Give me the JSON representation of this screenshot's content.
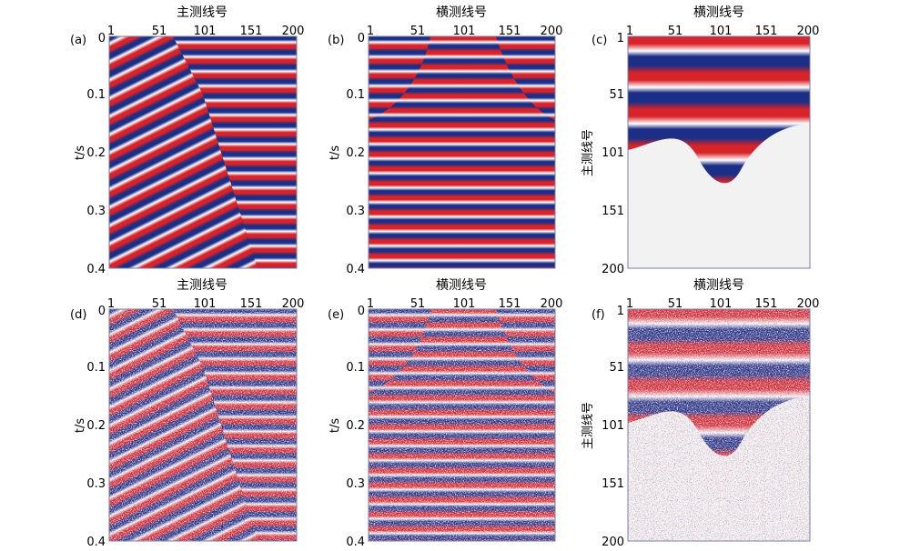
{
  "figure": {
    "panels": [
      {
        "id": "a",
        "label": "(a)",
        "top_title": "主测线号",
        "side_label": "t/s",
        "type": "seismic_section",
        "noise": false,
        "x_ticks": [
          "1",
          "51",
          "101",
          "151",
          "200"
        ],
        "y_ticks": [
          "0",
          "0.1",
          "0.2",
          "0.3",
          "0.4"
        ],
        "xlim": [
          1,
          200
        ],
        "ylim": [
          0,
          0.4
        ]
      },
      {
        "id": "b",
        "label": "(b)",
        "top_title": "横测线号",
        "side_label": "t/s",
        "type": "seismic_section",
        "noise": false,
        "x_ticks": [
          "1",
          "51",
          "101",
          "151",
          "200"
        ],
        "y_ticks": [
          "0",
          "0.1",
          "0.2",
          "0.3",
          "0.4"
        ],
        "xlim": [
          1,
          200
        ],
        "ylim": [
          0,
          0.4
        ]
      },
      {
        "id": "c",
        "label": "(c)",
        "top_title": "横测线号",
        "side_label": "主测线号",
        "type": "time_slice",
        "noise": false,
        "x_ticks": [
          "1",
          "51",
          "101",
          "151",
          "200"
        ],
        "y_ticks": [
          "1",
          "51",
          "101",
          "151",
          "200"
        ],
        "xlim": [
          1,
          200
        ],
        "ylim": [
          1,
          200
        ]
      },
      {
        "id": "d",
        "label": "(d)",
        "top_title": "主测线号",
        "side_label": "t/s",
        "type": "seismic_section",
        "noise": true,
        "x_ticks": [
          "1",
          "51",
          "101",
          "151",
          "200"
        ],
        "y_ticks": [
          "0",
          "0.1",
          "0.2",
          "0.3",
          "0.4"
        ],
        "xlim": [
          1,
          200
        ],
        "ylim": [
          0,
          0.4
        ]
      },
      {
        "id": "e",
        "label": "(e)",
        "top_title": "横测线号",
        "side_label": "t/s",
        "type": "seismic_section",
        "noise": true,
        "x_ticks": [
          "1",
          "51",
          "101",
          "151",
          "200"
        ],
        "y_ticks": [
          "0",
          "0.1",
          "0.2",
          "0.3",
          "0.4"
        ],
        "xlim": [
          1,
          200
        ],
        "ylim": [
          0,
          0.4
        ]
      },
      {
        "id": "f",
        "label": "(f)",
        "top_title": "横测线号",
        "side_label": "主测线号",
        "type": "time_slice",
        "noise": true,
        "x_ticks": [
          "1",
          "51",
          "101",
          "151",
          "200"
        ],
        "y_ticks": [
          "1",
          "51",
          "101",
          "151",
          "200"
        ],
        "xlim": [
          1,
          200
        ],
        "ylim": [
          1,
          200
        ]
      }
    ]
  },
  "chart_data": [
    {
      "type": "heatmap",
      "panel": "a",
      "xlabel": "主测线号",
      "ylabel": "t/s",
      "xlim": [
        1,
        200
      ],
      "ylim": [
        0,
        0.4
      ],
      "colors": {
        "positive": "#d7232a",
        "negative": "#1c2f86",
        "zero": "#ffffff"
      },
      "content": "dipping events cut by near-horizontal events",
      "regions": [
        {
          "name": "dipping",
          "boundary": [
            [
              1,
              0
            ],
            [
              70,
              0
            ],
            [
              101,
              0.1
            ],
            [
              160,
              0.4
            ],
            [
              1,
              0.4
            ]
          ]
        },
        {
          "name": "flat",
          "boundary": [
            [
              70,
              0
            ],
            [
              200,
              0
            ],
            [
              200,
              0.4
            ],
            [
              160,
              0.4
            ],
            [
              101,
              0.1
            ]
          ]
        }
      ]
    },
    {
      "type": "heatmap",
      "panel": "b",
      "xlabel": "横测线号",
      "ylabel": "t/s",
      "xlim": [
        1,
        200
      ],
      "ylim": [
        0,
        0.4
      ],
      "colors": {
        "positive": "#d7232a",
        "negative": "#1c2f86",
        "zero": "#ffffff"
      },
      "content": "horizontal events, shallow region bounded by curved edges"
    },
    {
      "type": "heatmap",
      "panel": "c",
      "xlabel": "横测线号",
      "ylabel": "主测线号",
      "xlim": [
        1,
        200
      ],
      "ylim": [
        1,
        200
      ],
      "colors": {
        "positive": "#d7232a",
        "negative": "#1c2f86",
        "zero": "#ffffff"
      },
      "content": "time slice: horizontal stripes above a bell-shaped boundary, blank below"
    },
    {
      "type": "heatmap",
      "panel": "d",
      "xlabel": "主测线号",
      "ylabel": "t/s",
      "xlim": [
        1,
        200
      ],
      "ylim": [
        0,
        0.4
      ],
      "colors": {
        "positive": "#d7232a",
        "negative": "#1c2f86",
        "zero": "#ffffff"
      },
      "content": "noisy version of (a)"
    },
    {
      "type": "heatmap",
      "panel": "e",
      "xlabel": "横测线号",
      "ylabel": "t/s",
      "xlim": [
        1,
        200
      ],
      "ylim": [
        0,
        0.4
      ],
      "colors": {
        "positive": "#d7232a",
        "negative": "#1c2f86",
        "zero": "#ffffff"
      },
      "content": "noisy version of (b)"
    },
    {
      "type": "heatmap",
      "panel": "f",
      "xlabel": "横测线号",
      "ylabel": "主测线号",
      "xlim": [
        1,
        200
      ],
      "ylim": [
        1,
        200
      ],
      "colors": {
        "positive": "#d7232a",
        "negative": "#1c2f86",
        "zero": "#ffffff"
      },
      "content": "noisy version of (c)"
    }
  ]
}
